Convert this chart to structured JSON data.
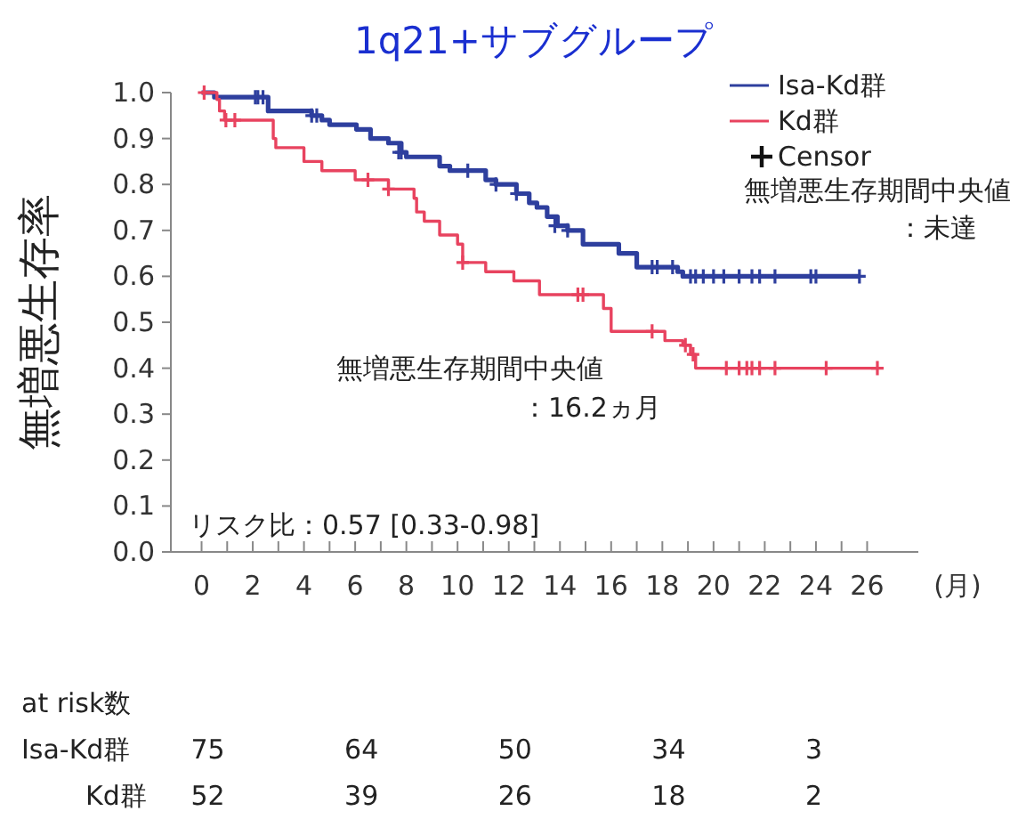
{
  "chart_data": {
    "type": "step",
    "title": "1q21+サブグループ",
    "xlabel": "(月)",
    "ylabel": "無増悪生存率",
    "xlim": [
      -1.2,
      28
    ],
    "ylim": [
      0,
      1
    ],
    "xticks": [
      0,
      {
        "value": 1,
        "label": null
      },
      2,
      {
        "value": 3,
        "label": null
      },
      4,
      {
        "value": 5,
        "label": null
      },
      6,
      {
        "value": 7,
        "label": null
      },
      8,
      {
        "value": 9,
        "label": null
      },
      10,
      {
        "value": 11,
        "label": null
      },
      12,
      {
        "value": 13,
        "label": null
      },
      14,
      {
        "value": 15,
        "label": null
      },
      16,
      {
        "value": 17,
        "label": null
      },
      18,
      {
        "value": 19,
        "label": null
      },
      20,
      {
        "value": 21,
        "label": null
      },
      22,
      {
        "value": 23,
        "label": null
      },
      24,
      {
        "value": 25,
        "label": null
      },
      26
    ],
    "yticks": [
      {
        "value": 0,
        "label": "0.0"
      },
      0.1,
      0.2,
      0.3,
      0.4,
      0.5,
      0.6,
      0.7,
      0.8,
      0.9,
      {
        "value": 1,
        "label": "1.0"
      }
    ],
    "legend": "top right",
    "grid": false,
    "series": [
      {
        "name": "Isa-Kd群",
        "color": "#2e3f9e",
        "x": [
          0,
          0.5,
          2.6,
          4.3,
          4.7,
          5.0,
          6.05,
          6.6,
          7.3,
          7.8,
          8.0,
          9.3,
          9.7,
          11.1,
          11.5,
          12.3,
          12.8,
          13.1,
          13.5,
          13.9,
          14.3,
          14.9,
          16.3,
          17.0,
          18.6,
          18.8,
          25.7
        ],
        "values": [
          1.0,
          0.99,
          0.96,
          0.95,
          0.94,
          0.93,
          0.92,
          0.9,
          0.89,
          0.87,
          0.86,
          0.84,
          0.83,
          0.81,
          0.8,
          0.78,
          0.76,
          0.75,
          0.73,
          0.71,
          0.7,
          0.67,
          0.65,
          0.62,
          0.61,
          0.6,
          0.6
        ]
      },
      {
        "name": "Kd群",
        "color": "#e8435f",
        "x": [
          0,
          0.6,
          0.7,
          0.9,
          2.8,
          2.9,
          4.0,
          4.7,
          6.0,
          7.3,
          8.3,
          8.4,
          8.7,
          9.3,
          10.0,
          10.2,
          11.1,
          12.2,
          13.2,
          15.7,
          16.0,
          18.1,
          18.8,
          19.1,
          19.3,
          26.4
        ],
        "values": [
          1.0,
          0.985,
          0.96,
          0.94,
          0.9,
          0.88,
          0.85,
          0.83,
          0.81,
          0.79,
          0.77,
          0.74,
          0.72,
          0.69,
          0.67,
          0.63,
          0.61,
          0.59,
          0.56,
          0.53,
          0.48,
          0.46,
          0.45,
          0.43,
          0.4,
          0.4
        ]
      },
      {
        "type": "scatter",
        "marker": "cross",
        "color": "#2e3f9e",
        "x": [
          2.1,
          2.2,
          2.4,
          4.3,
          4.5,
          7.7,
          7.8,
          10.4,
          11.5,
          12.3,
          13.8,
          14.3,
          17.6,
          17.8,
          18.4,
          19.1,
          19.3,
          19.6,
          20.0,
          20.4,
          21.0,
          21.5,
          21.8,
          22.4,
          23.8,
          24.0,
          25.7
        ],
        "values": [
          0.99,
          0.99,
          0.99,
          0.95,
          0.95,
          0.87,
          0.87,
          0.83,
          0.8,
          0.78,
          0.71,
          0.7,
          0.62,
          0.62,
          0.62,
          0.6,
          0.6,
          0.6,
          0.6,
          0.6,
          0.6,
          0.6,
          0.6,
          0.6,
          0.6,
          0.6,
          0.6
        ]
      },
      {
        "type": "scatter",
        "marker": "cross",
        "color": "#e8435f",
        "x": [
          0.1,
          0.95,
          1.3,
          6.5,
          7.3,
          10.2,
          14.7,
          14.9,
          17.6,
          18.9,
          19.2,
          20.5,
          21.0,
          21.3,
          21.5,
          21.8,
          22.4,
          24.4,
          26.4
        ],
        "values": [
          1.0,
          0.94,
          0.94,
          0.81,
          0.79,
          0.63,
          0.56,
          0.56,
          0.48,
          0.45,
          0.43,
          0.4,
          0.4,
          0.4,
          0.4,
          0.4,
          0.4,
          0.4,
          0.4
        ]
      }
    ],
    "annotations": [
      "Censor",
      "無増悪生存期間中央値",
      "：未達",
      "無増悪生存期間中央値",
      "：16.2ヵ月",
      "リスク比：0.57 [0.33-0.98]",
      "at risk数",
      "Isa-Kd群",
      "75",
      "64",
      "50",
      "34",
      "3",
      "Kd群",
      "52",
      "39",
      "26",
      "18",
      "2"
    ]
  }
}
